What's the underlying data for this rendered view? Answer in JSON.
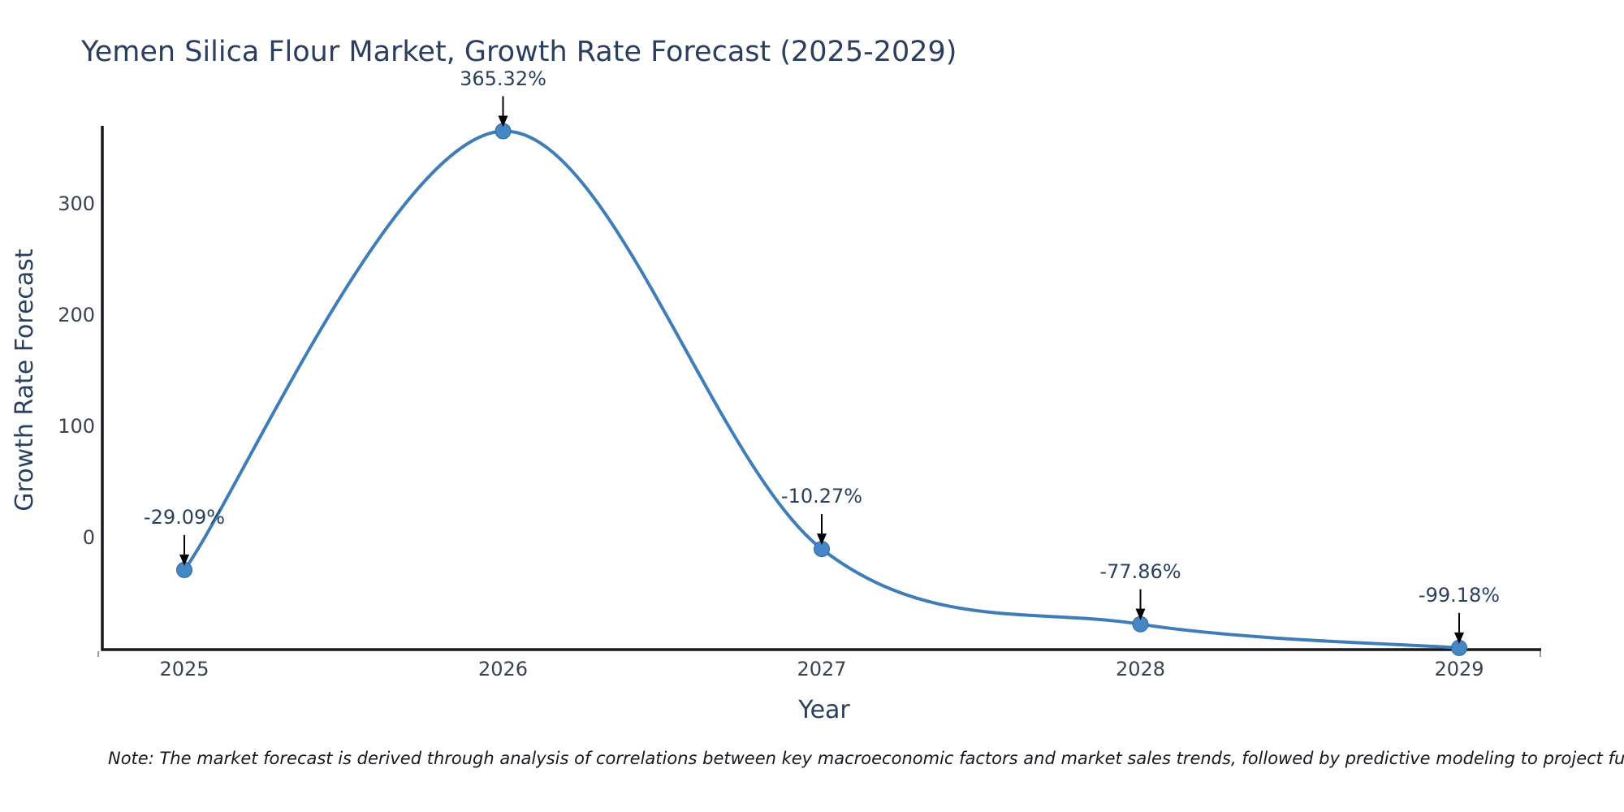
{
  "title": "Yemen Silica Flour Market, Growth Rate Forecast (2025-2029)",
  "x_axis": {
    "title": "Year",
    "ticks": [
      "2025",
      "2026",
      "2027",
      "2028",
      "2029"
    ]
  },
  "y_axis": {
    "title": "Growth Rate Forecast",
    "ticks": [
      "300",
      "200",
      "100",
      "0"
    ],
    "tick_values": [
      300,
      200,
      100,
      0
    ]
  },
  "note": "Note: The market forecast is derived through analysis of correlations between key macroeconomic factors and market sales trends, followed by predictive modeling to project future sales.",
  "chart_data": {
    "type": "line",
    "title": "Yemen Silica Flour Market, Growth Rate Forecast (2025-2029)",
    "xlabel": "Year",
    "ylabel": "Growth Rate Forecast",
    "x": [
      2025,
      2026,
      2027,
      2028,
      2029
    ],
    "series": [
      {
        "name": "Growth Rate Forecast",
        "values": [
          -29.09,
          365.32,
          -10.27,
          -77.86,
          -99.18
        ]
      }
    ],
    "annotations": [
      "-29.09%",
      "365.32%",
      "-10.27%",
      "-77.86%",
      "-99.18%"
    ],
    "line_shape": "spline",
    "markers": true,
    "grid": false,
    "legend": false,
    "ylim": [
      -103,
      372
    ],
    "yticks": [
      0,
      100,
      200,
      300
    ],
    "colors": {
      "line": "#3f7db8",
      "marker": "#4487c4",
      "marker_edge": "#2e689f",
      "annotation_arrow": "#000000",
      "axis_line": "#16181d",
      "text": "#2a3f5f",
      "note_text": "#16191d",
      "background": "#ffffff"
    }
  }
}
